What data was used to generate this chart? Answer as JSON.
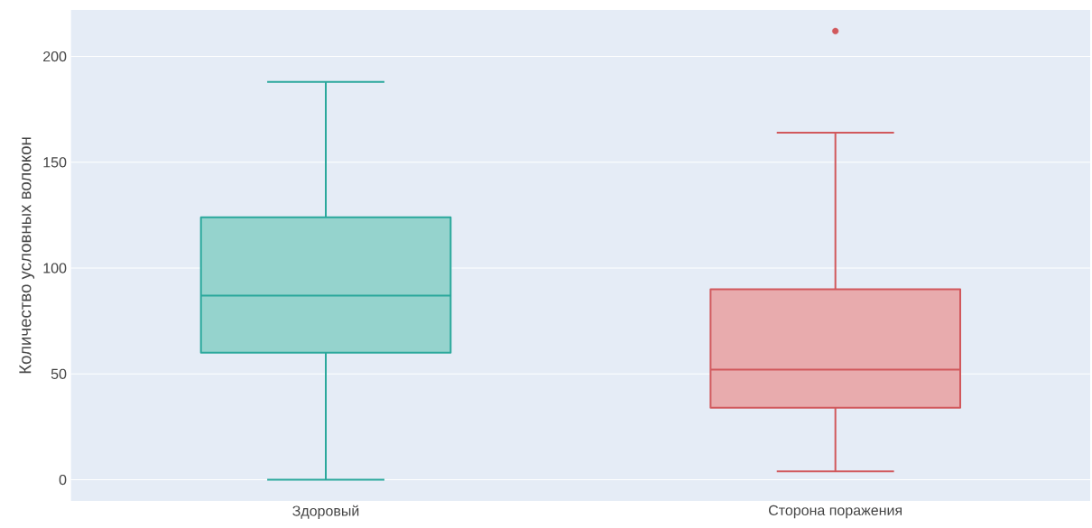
{
  "chart_data": {
    "type": "box",
    "ylabel": "Количество условных волокон",
    "categories": [
      "Здоровый",
      "Сторона поражения"
    ],
    "boxes": [
      {
        "low": 0,
        "q1": 60,
        "median": 87,
        "q3": 124,
        "high": 188
      },
      {
        "low": 4,
        "q1": 34,
        "median": 52,
        "q3": 90,
        "high": 164,
        "outliers": [
          212
        ]
      }
    ],
    "colors": [
      "#2ba89c",
      "#d1585c"
    ],
    "ylim": [
      -10,
      222
    ],
    "yticks": [
      0,
      50,
      100,
      150,
      200
    ],
    "grid": "y"
  }
}
